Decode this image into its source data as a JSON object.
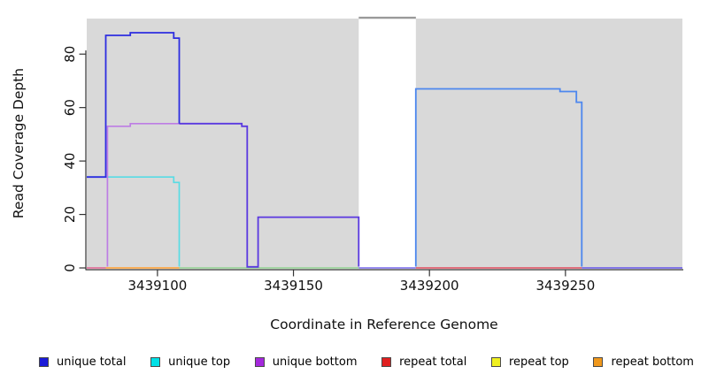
{
  "chart": {
    "title": "",
    "xlabel": "Coordinate in Reference Genome",
    "ylabel": "Read Coverage Depth"
  },
  "chart_data": {
    "type": "line",
    "title": "",
    "xlabel": "Coordinate in Reference Genome",
    "ylabel": "Read Coverage Depth",
    "xlim": [
      3439074,
      3439293
    ],
    "ylim": [
      0,
      93.3
    ],
    "grid": false,
    "legend_position": "bottom",
    "x_ticks": [
      {
        "value": 3439100,
        "label": "3439100"
      },
      {
        "value": 3439150,
        "label": "3439150"
      },
      {
        "value": 3439200,
        "label": "3439200"
      },
      {
        "value": 3439250,
        "label": "3439250"
      }
    ],
    "y_ticks": [
      {
        "value": 0,
        "label": "0"
      },
      {
        "value": 20,
        "label": "20"
      },
      {
        "value": 40,
        "label": "40"
      },
      {
        "value": 60,
        "label": "60"
      },
      {
        "value": 80,
        "label": "80"
      }
    ],
    "shaded_regions": [
      {
        "x1": 3439074,
        "x2": 3439174,
        "color": "#d9d9d9"
      },
      {
        "x1": 3439195,
        "x2": 3439293,
        "color": "#d9d9d9"
      }
    ],
    "gap_region": {
      "x1": 3439174,
      "x2": 3439195,
      "top_bar_color": "#999999",
      "top_bar_value": 93.0
    },
    "series": [
      {
        "name": "unique total",
        "color": "#2222dd",
        "points": [
          [
            3439074,
            34
          ],
          [
            3439081,
            34
          ],
          [
            3439081,
            87
          ],
          [
            3439090,
            87
          ],
          [
            3439090,
            88
          ],
          [
            3439106,
            88
          ],
          [
            3439106,
            86
          ],
          [
            3439108,
            86
          ],
          [
            3439108,
            54
          ],
          [
            3439131,
            54
          ],
          [
            3439131,
            53
          ],
          [
            3439133,
            53
          ],
          [
            3439133,
            0
          ],
          [
            3439137,
            0
          ],
          [
            3439137,
            19
          ],
          [
            3439174,
            19
          ],
          [
            3439174,
            0
          ],
          [
            3439195,
            0
          ],
          [
            3439195,
            67
          ],
          [
            3439248,
            67
          ],
          [
            3439248,
            66
          ],
          [
            3439254,
            66
          ],
          [
            3439254,
            62
          ],
          [
            3439256,
            62
          ],
          [
            3439256,
            0
          ],
          [
            3439293,
            0
          ]
        ]
      },
      {
        "name": "unique top",
        "color": "#00e0e6",
        "points": [
          [
            3439074,
            34
          ],
          [
            3439106,
            34
          ],
          [
            3439106,
            32
          ],
          [
            3439108,
            32
          ],
          [
            3439108,
            0
          ],
          [
            3439195,
            0
          ],
          [
            3439195,
            67
          ],
          [
            3439248,
            67
          ],
          [
            3439248,
            66
          ],
          [
            3439254,
            66
          ],
          [
            3439254,
            62
          ],
          [
            3439256,
            62
          ],
          [
            3439256,
            0
          ],
          [
            3439293,
            0
          ]
        ]
      },
      {
        "name": "unique bottom",
        "color": "#a428dc",
        "points": [
          [
            3439074,
            0
          ],
          [
            3439081,
            0
          ],
          [
            3439081,
            53
          ],
          [
            3439090,
            53
          ],
          [
            3439090,
            54
          ],
          [
            3439131,
            54
          ],
          [
            3439131,
            53
          ],
          [
            3439133,
            53
          ],
          [
            3439133,
            0
          ],
          [
            3439137,
            0
          ],
          [
            3439137,
            19
          ],
          [
            3439174,
            19
          ],
          [
            3439174,
            0
          ],
          [
            3439293,
            0
          ]
        ]
      },
      {
        "name": "repeat total",
        "color": "#e02020",
        "points": [
          [
            3439074,
            0
          ],
          [
            3439293,
            0
          ]
        ]
      },
      {
        "name": "repeat top",
        "color": "#f0f020",
        "points": [
          [
            3439074,
            0
          ],
          [
            3439293,
            0
          ]
        ]
      },
      {
        "name": "repeat bottom",
        "color": "#f0981c",
        "points": [
          [
            3439074,
            0
          ],
          [
            3439293,
            0
          ]
        ]
      }
    ],
    "rendered_segments": [
      {
        "name": "baseline-left-pink",
        "color": "#e0618f",
        "w": 1.6,
        "pts": [
          [
            3439074,
            0
          ],
          [
            3439081,
            0
          ]
        ]
      },
      {
        "name": "baseline-orange",
        "color": "#ff9d2e",
        "w": 1.6,
        "pts": [
          [
            3439081,
            0
          ],
          [
            3439108,
            0
          ]
        ]
      },
      {
        "name": "baseline-green",
        "color": "#8fd08f",
        "w": 1.6,
        "pts": [
          [
            3439108,
            0
          ],
          [
            3439174,
            0
          ]
        ]
      },
      {
        "name": "baseline-gap-violet",
        "color": "#7566ea",
        "w": 1.6,
        "pts": [
          [
            3439174,
            0
          ],
          [
            3439195,
            0
          ]
        ]
      },
      {
        "name": "baseline-red",
        "color": "#e04a5c",
        "w": 1.6,
        "pts": [
          [
            3439195,
            0
          ],
          [
            3439256,
            0
          ]
        ]
      },
      {
        "name": "baseline-right-violet",
        "color": "#6253e8",
        "w": 1.6,
        "pts": [
          [
            3439256,
            0
          ],
          [
            3439293,
            0
          ]
        ]
      },
      {
        "name": "unique-top-cyan",
        "color": "#58dce4",
        "w": 1.7,
        "pts": [
          [
            3439074,
            34
          ],
          [
            3439106,
            34
          ],
          [
            3439106,
            32
          ],
          [
            3439108,
            32
          ],
          [
            3439108,
            0.5
          ]
        ]
      },
      {
        "name": "unique-total-mid-violet",
        "color": "#5a39e0",
        "w": 1.8,
        "pts": [
          [
            3439108,
            54
          ],
          [
            3439131,
            54
          ],
          [
            3439131,
            53
          ],
          [
            3439133,
            53
          ],
          [
            3439133,
            0.4
          ],
          [
            3439137,
            0.4
          ],
          [
            3439137,
            19
          ],
          [
            3439174,
            19
          ],
          [
            3439174,
            0.5
          ]
        ]
      },
      {
        "name": "unique-bottom-purple",
        "color": "#bd7de4",
        "w": 1.7,
        "pts": [
          [
            3439081.6,
            0.5
          ],
          [
            3439081.6,
            53
          ],
          [
            3439090,
            53
          ],
          [
            3439090,
            54
          ],
          [
            3439108,
            54
          ]
        ]
      },
      {
        "name": "unique-total-blue",
        "color": "#2d2de0",
        "w": 1.8,
        "pts": [
          [
            3439074,
            34
          ],
          [
            3439081,
            34
          ],
          [
            3439081,
            87
          ],
          [
            3439090,
            87
          ],
          [
            3439090,
            88
          ],
          [
            3439106,
            88
          ],
          [
            3439106,
            86
          ],
          [
            3439108,
            86
          ],
          [
            3439108,
            54
          ]
        ]
      },
      {
        "name": "unique-total-light-blue",
        "color": "#4d87ee",
        "w": 1.8,
        "pts": [
          [
            3439195,
            0.5
          ],
          [
            3439195,
            67
          ],
          [
            3439248,
            67
          ],
          [
            3439248,
            66
          ],
          [
            3439254,
            66
          ],
          [
            3439254,
            62
          ],
          [
            3439256,
            62
          ],
          [
            3439256,
            0.5
          ]
        ]
      }
    ],
    "legend": [
      {
        "label": "unique total",
        "color": "#1b1bd8"
      },
      {
        "label": "unique top",
        "color": "#00e0e6"
      },
      {
        "label": "unique bottom",
        "color": "#a428dc"
      },
      {
        "label": "repeat total",
        "color": "#e02020"
      },
      {
        "label": "repeat top",
        "color": "#f0f020"
      },
      {
        "label": "repeat bottom",
        "color": "#f0981c"
      }
    ],
    "axis_color": "#333333",
    "plot_background": "#d9d9d9"
  }
}
